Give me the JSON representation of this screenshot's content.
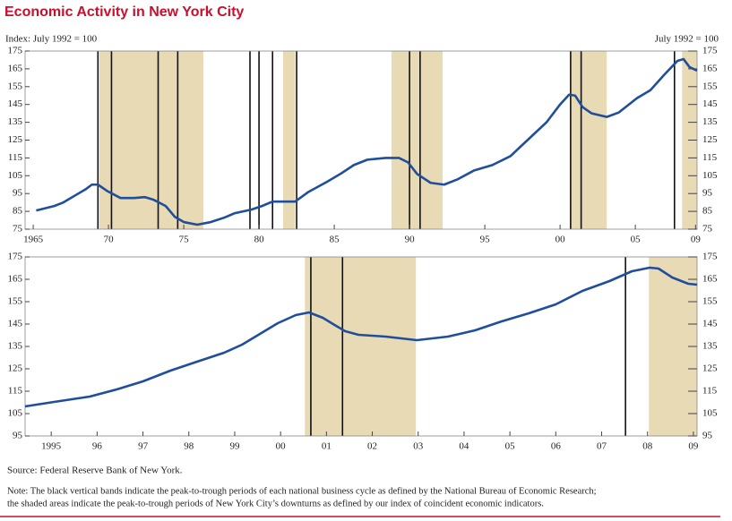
{
  "title": "Economic Activity in New York City",
  "source": "Source: Federal Reserve Bank of New York.",
  "note": [
    "Note: The black vertical bands indicate the peak-to-trough periods of each national business cycle as defined by the National Bureau of Economic Research;",
    "the shaded areas indicate the peak-to-trough periods of New York City’s downturns as defined by our index of coincident economic indicators."
  ],
  "chart_data": [
    {
      "type": "line",
      "ylabel": "Index: July 1992 = 100",
      "y2label": "July 1992 = 100",
      "color": "#1f4e9c",
      "x": [
        1965.2,
        1966.4,
        1967,
        1967.9,
        1968.5,
        1968.9,
        1969.3,
        1969.9,
        1970.8,
        1971.7,
        1972.4,
        1973,
        1973.8,
        1974.4,
        1975,
        1975.9,
        1976.8,
        1977.7,
        1978.4,
        1979.5,
        1980.2,
        1980.9,
        1982.4,
        1983.3,
        1984.5,
        1985.4,
        1986.3,
        1987.2,
        1988.4,
        1989.3,
        1989.9,
        1990.5,
        1991.4,
        1992.3,
        1993.2,
        1994.3,
        1995.5,
        1996.7,
        1997.9,
        1999.1,
        2000,
        2000.6,
        2001,
        2001.5,
        2002.1,
        2003.1,
        2003.9,
        2005.1,
        2006,
        2006.9,
        2007.8,
        2008.2,
        2008.6,
        2009.1
      ],
      "values": [
        85.5,
        88,
        90,
        94.5,
        97.5,
        100,
        100,
        96.5,
        92.5,
        92.5,
        93,
        91.5,
        88,
        82,
        79,
        77.5,
        79,
        81.5,
        84,
        86,
        88,
        90.5,
        90.5,
        96,
        101.5,
        106,
        111,
        114,
        115,
        115,
        112.5,
        106,
        101,
        100,
        103,
        108,
        111,
        116,
        125.5,
        135,
        145,
        150.5,
        150,
        143.5,
        140,
        138,
        140.5,
        148.5,
        153,
        161.5,
        169.5,
        170.5,
        166,
        164
      ],
      "bands": [
        {
          "start": 1969.4,
          "end": 1976.3
        },
        {
          "start": 1981.6,
          "end": 1982.4
        },
        {
          "start": 1988.8,
          "end": 1992.2
        },
        {
          "start": 2000.7,
          "end": 2003.1
        },
        {
          "start": 2008.1,
          "end": 2009.1
        }
      ],
      "lines": [
        1969.3,
        1970.2,
        1973.3,
        1974.6,
        1979.4,
        1980.0,
        1980.9,
        1982.5,
        1990.0,
        1990.7,
        2000.7,
        2001.4,
        2007.6
      ],
      "xlim": [
        1964.46,
        2009.1
      ],
      "xticks": [
        1965,
        {
          "value": 1970,
          "label": "70"
        },
        {
          "value": 1975,
          "label": "75"
        },
        {
          "value": 1980,
          "label": "80"
        },
        {
          "value": 1985,
          "label": "85"
        },
        {
          "value": 1990,
          "label": "90"
        },
        {
          "value": 1995,
          "label": "95"
        },
        {
          "value": 2000,
          "label": "00"
        },
        {
          "value": 2005,
          "label": "05"
        },
        {
          "value": 2009,
          "label": "09"
        }
      ],
      "ylim": [
        75,
        175
      ],
      "yticks": [
        75,
        85,
        95,
        105,
        115,
        125,
        135,
        145,
        155,
        165,
        175
      ]
    },
    {
      "type": "line",
      "color": "#1f4e9c",
      "x": [
        1994.43,
        1995.06,
        1995.84,
        1996.43,
        1997.0,
        1997.6,
        1998.18,
        1998.77,
        1999.16,
        1999.55,
        1999.94,
        2000.33,
        2000.62,
        2000.92,
        2001.21,
        2001.41,
        2001.7,
        2002.29,
        2002.97,
        2003.65,
        2004.24,
        2004.82,
        2005.41,
        2006.0,
        2006.58,
        2007.17,
        2007.66,
        2008.05,
        2008.24,
        2008.54,
        2008.89,
        2009.08
      ],
      "values": [
        108.2,
        110.2,
        112.6,
        115.8,
        119.4,
        124.2,
        128.2,
        132.2,
        135.8,
        140.6,
        145.4,
        149,
        150.2,
        147.8,
        144.2,
        141.8,
        140.2,
        139.4,
        137.8,
        139.4,
        142.2,
        146.2,
        149.8,
        153.8,
        159.8,
        164.2,
        168.6,
        170.2,
        169.8,
        165.8,
        163,
        162.6
      ],
      "bands": [
        {
          "start": 2000.53,
          "end": 2002.95
        },
        {
          "start": 2008.03,
          "end": 2009.08
        }
      ],
      "lines": [
        2000.66,
        2001.35,
        2007.52
      ],
      "xlim": [
        1994.43,
        2009.08
      ],
      "xticks": [
        1995,
        {
          "value": 1996,
          "label": "96"
        },
        {
          "value": 1997,
          "label": "97"
        },
        {
          "value": 1998,
          "label": "98"
        },
        {
          "value": 1999,
          "label": "99"
        },
        {
          "value": 2000,
          "label": "00"
        },
        {
          "value": 2001,
          "label": "01"
        },
        {
          "value": 2002,
          "label": "02"
        },
        {
          "value": 2003,
          "label": "03"
        },
        {
          "value": 2004,
          "label": "04"
        },
        {
          "value": 2005,
          "label": "05"
        },
        {
          "value": 2006,
          "label": "06"
        },
        {
          "value": 2007,
          "label": "07"
        },
        {
          "value": 2008,
          "label": "08"
        },
        {
          "value": 2009,
          "label": "09"
        }
      ],
      "ylim": [
        95,
        175
      ],
      "yticks": [
        95,
        105,
        115,
        125,
        135,
        145,
        155,
        165,
        175
      ]
    }
  ]
}
